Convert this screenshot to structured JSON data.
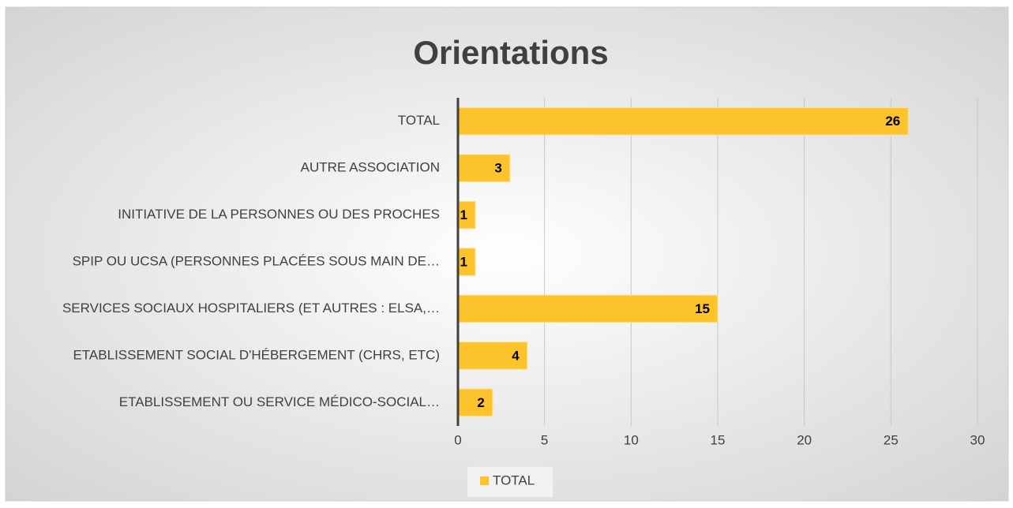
{
  "chart_data": {
    "type": "bar",
    "orientation": "horizontal",
    "title": "Orientations",
    "categories": [
      "TOTAL",
      "AUTRE ASSOCIATION",
      "INITIATIVE DE LA PERSONNES OU DES PROCHES",
      "SPIP OU UCSA  (PERSONNES PLACÉES SOUS MAIN DE…",
      "SERVICES SOCIAUX HOSPITALIERS (ET AUTRES : ELSA,…",
      "ETABLISSEMENT SOCIAL D'HÉBERGEMENT (CHRS, ETC)",
      "ETABLISSEMENT OU SERVICE MÉDICO-SOCIAL…"
    ],
    "series": [
      {
        "name": "TOTAL",
        "color": "#fcc32c",
        "values": [
          26,
          3,
          1,
          1,
          15,
          4,
          2
        ]
      }
    ],
    "xlim": [
      0,
      30
    ],
    "xticks": [
      0,
      5,
      10,
      15,
      20,
      25,
      30
    ],
    "grid": true,
    "legend": "bottom"
  }
}
